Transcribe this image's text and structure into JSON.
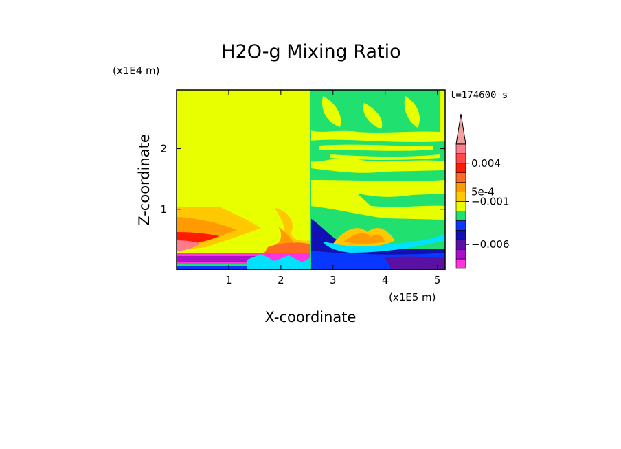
{
  "chart_data": {
    "type": "heatmap",
    "title": "H2O-g Mixing Ratio",
    "xlabel": "X-coordinate",
    "ylabel": "Z-coordinate",
    "x_scale_label": "(x1E5 m)",
    "y_scale_label": "(x1E4 m)",
    "time_label": "t=174600 s",
    "xlim": [
      0,
      5.15
    ],
    "ylim": [
      0,
      2.97
    ],
    "x_ticks": [
      {
        "value": 1,
        "label": "1"
      },
      {
        "value": 2,
        "label": "2"
      },
      {
        "value": 3,
        "label": "3"
      },
      {
        "value": 4,
        "label": "4"
      },
      {
        "value": 5,
        "label": "5"
      }
    ],
    "y_ticks": [
      {
        "value": 1,
        "label": "1"
      },
      {
        "value": 2,
        "label": "2"
      }
    ],
    "colorbar": {
      "colors": [
        "#ff33dd",
        "#aa10c8",
        "#5a10a0",
        "#1010b4",
        "#0838ff",
        "#20e070",
        "#e8ff00",
        "#ffc800",
        "#ff9a00",
        "#ff6a20",
        "#ff1a00",
        "#ff4848",
        "#ff7a8a",
        "#f0a0a0"
      ],
      "labels": [
        {
          "level": 2.5,
          "text": "−0.006"
        },
        {
          "level": 7.0,
          "text": "−0.001"
        },
        {
          "level": 8.0,
          "text": "5e-4"
        },
        {
          "level": 11.0,
          "text": "0.004"
        }
      ]
    }
  }
}
